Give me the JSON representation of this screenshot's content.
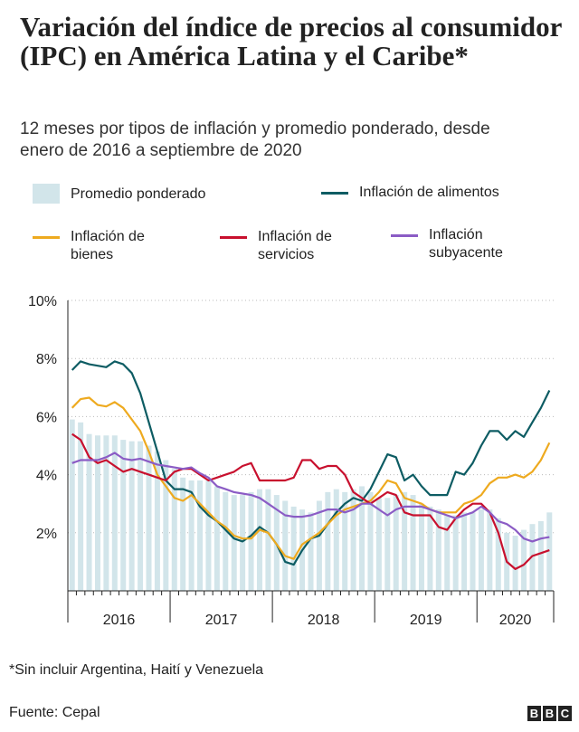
{
  "chart_data": {
    "type": "bar-line",
    "title": "Variación del índice de precios al consumidor (IPC) en América Latina y el Caribe*",
    "subtitle": "12 meses por tipos de inflación y promedio ponderado, desde enero de 2016 a septiembre de 2020",
    "categories": [
      "2016",
      null,
      null,
      null,
      null,
      null,
      null,
      null,
      null,
      null,
      null,
      null,
      "2017",
      null,
      null,
      null,
      null,
      null,
      null,
      null,
      null,
      null,
      null,
      null,
      "2018",
      null,
      null,
      null,
      null,
      null,
      null,
      null,
      null,
      null,
      null,
      null,
      "2019",
      null,
      null,
      null,
      null,
      null,
      null,
      null,
      null,
      null,
      null,
      null,
      "2020",
      null,
      null,
      null,
      null,
      null,
      null,
      null,
      null
    ],
    "ylim": [
      0,
      10
    ],
    "yticks": [
      {
        "value": 2,
        "label": "2%"
      },
      {
        "value": 4,
        "label": "4%"
      },
      {
        "value": 6,
        "label": "6%"
      },
      {
        "value": 8,
        "label": "8%"
      },
      {
        "value": 10,
        "label": "10%"
      }
    ],
    "grid": true,
    "series": [
      {
        "name": "Promedio ponderado",
        "type": "bar",
        "color": "#d2e5ea",
        "values": [
          5.9,
          5.8,
          5.4,
          5.35,
          5.35,
          5.35,
          5.2,
          5.15,
          5.15,
          5.0,
          4.8,
          4.5,
          4.2,
          3.9,
          3.8,
          3.8,
          3.8,
          3.6,
          3.4,
          3.3,
          3.3,
          3.4,
          3.5,
          3.5,
          3.3,
          3.1,
          2.9,
          2.8,
          2.7,
          3.1,
          3.4,
          3.5,
          3.4,
          3.5,
          3.6,
          3.4,
          3.2,
          3.2,
          3.3,
          3.4,
          3.3,
          3.0,
          2.9,
          2.8,
          2.6,
          2.6,
          2.7,
          2.7,
          2.8,
          2.8,
          2.5,
          2.0,
          1.9,
          2.1,
          2.3,
          2.4,
          2.7
        ]
      },
      {
        "name": "Inflación de alimentos",
        "type": "line",
        "color": "#0d5c63",
        "values": [
          7.6,
          7.9,
          7.8,
          7.75,
          7.7,
          7.9,
          7.8,
          7.5,
          6.8,
          5.8,
          4.8,
          3.8,
          3.5,
          3.5,
          3.4,
          2.9,
          2.6,
          2.4,
          2.1,
          1.8,
          1.7,
          1.9,
          2.2,
          2.0,
          1.6,
          1.0,
          0.9,
          1.4,
          1.8,
          1.9,
          2.3,
          2.7,
          3.0,
          3.2,
          3.1,
          3.5,
          4.1,
          4.7,
          4.6,
          3.8,
          4.0,
          3.6,
          3.3,
          3.3,
          3.3,
          4.1,
          4.0,
          4.4,
          5.0,
          5.5,
          5.5,
          5.2,
          5.5,
          5.3,
          5.8,
          6.3,
          6.9
        ]
      },
      {
        "name": "Inflación de bienes",
        "type": "line",
        "color": "#eeaa1f",
        "values": [
          6.3,
          6.6,
          6.65,
          6.4,
          6.35,
          6.5,
          6.3,
          5.9,
          5.5,
          4.8,
          4.0,
          3.6,
          3.2,
          3.1,
          3.3,
          3.0,
          2.7,
          2.4,
          2.2,
          1.9,
          1.8,
          1.8,
          2.1,
          2.0,
          1.6,
          1.2,
          1.1,
          1.6,
          1.8,
          2.0,
          2.3,
          2.6,
          2.8,
          2.9,
          3.0,
          3.1,
          3.4,
          3.8,
          3.7,
          3.2,
          3.1,
          3.0,
          2.8,
          2.7,
          2.7,
          2.7,
          3.0,
          3.1,
          3.3,
          3.7,
          3.9,
          3.9,
          4.0,
          3.9,
          4.1,
          4.5,
          5.1
        ]
      },
      {
        "name": "Inflación de servicios",
        "type": "line",
        "color": "#c8102e",
        "values": [
          5.4,
          5.2,
          4.6,
          4.4,
          4.5,
          4.3,
          4.1,
          4.2,
          4.1,
          4.0,
          3.9,
          3.8,
          4.1,
          4.2,
          4.2,
          4.0,
          3.8,
          3.9,
          4.0,
          4.1,
          4.3,
          4.4,
          3.8,
          3.8,
          3.8,
          3.8,
          3.9,
          4.5,
          4.5,
          4.2,
          4.3,
          4.3,
          4.0,
          3.4,
          3.2,
          3.0,
          3.2,
          3.4,
          3.3,
          2.7,
          2.6,
          2.6,
          2.6,
          2.2,
          2.1,
          2.5,
          2.8,
          3.0,
          3.0,
          2.7,
          2.0,
          1.0,
          0.75,
          0.9,
          1.2,
          1.3,
          1.4
        ]
      },
      {
        "name": "Inflación subyacente",
        "type": "line",
        "color": "#8b5cc5",
        "values": [
          4.4,
          4.5,
          4.5,
          4.5,
          4.6,
          4.75,
          4.55,
          4.5,
          4.55,
          4.45,
          4.35,
          4.3,
          4.25,
          4.2,
          4.25,
          4.05,
          3.9,
          3.6,
          3.5,
          3.4,
          3.35,
          3.3,
          3.2,
          3.0,
          2.8,
          2.6,
          2.55,
          2.55,
          2.6,
          2.7,
          2.8,
          2.8,
          2.7,
          2.8,
          3.0,
          3.0,
          2.8,
          2.6,
          2.8,
          2.9,
          2.9,
          2.9,
          2.8,
          2.7,
          2.6,
          2.5,
          2.6,
          2.7,
          2.9,
          2.7,
          2.4,
          2.3,
          2.1,
          1.8,
          1.7,
          1.8,
          1.85
        ]
      }
    ],
    "note": "*Sin incluir Argentina, Haití y Venezuela",
    "source": "Fuente: Cepal",
    "logo": [
      "B",
      "B",
      "C"
    ]
  }
}
